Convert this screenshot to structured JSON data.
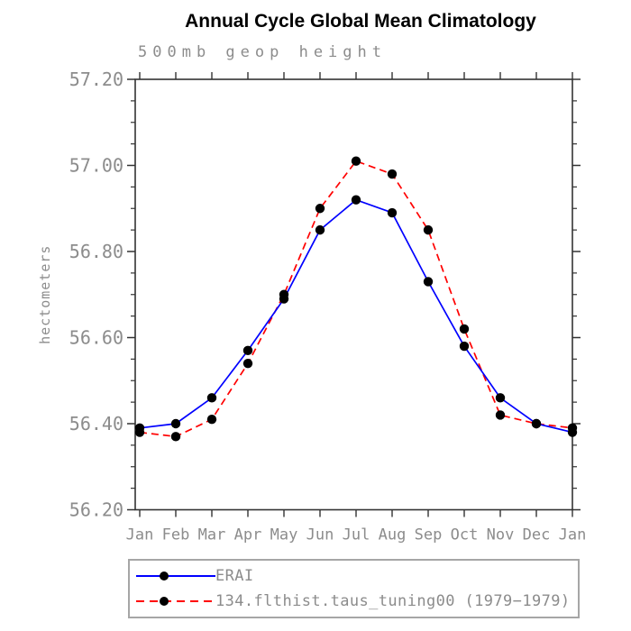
{
  "title": "Annual Cycle Global Mean Climatology",
  "subtitle": "500mb geop height",
  "chart_data": {
    "type": "line",
    "title": "Annual Cycle Global Mean Climatology",
    "subtitle": "500mb geop height",
    "xlabel": "",
    "ylabel": "hectometers",
    "categories": [
      "Jan",
      "Feb",
      "Mar",
      "Apr",
      "May",
      "Jun",
      "Jul",
      "Aug",
      "Sep",
      "Oct",
      "Nov",
      "Dec",
      "Jan"
    ],
    "ylim": [
      56.2,
      57.2
    ],
    "ytick_labels": [
      "56.20",
      "56.40",
      "56.60",
      "56.80",
      "57.00",
      "57.20"
    ],
    "ytick_major_step": 0.2,
    "ytick_minor_step": 0.05,
    "grid": false,
    "legend_position": "bottom",
    "series": [
      {
        "name": "ERAI",
        "color": "#0000ff",
        "line_style": "solid",
        "marker": "filled-circle",
        "marker_color": "#000000",
        "values": [
          56.39,
          56.4,
          56.46,
          56.57,
          56.69,
          56.85,
          56.92,
          56.89,
          56.73,
          56.58,
          56.46,
          56.4,
          56.38
        ]
      },
      {
        "name": "134.flthist.taus_tuning00 (1979−1979)",
        "color": "#ff0000",
        "line_style": "dashed",
        "marker": "filled-circle",
        "marker_color": "#000000",
        "values": [
          56.38,
          56.37,
          56.41,
          56.54,
          56.7,
          56.9,
          57.01,
          56.98,
          56.85,
          56.62,
          56.42,
          56.4,
          56.39
        ]
      }
    ]
  },
  "colors": {
    "series_blue": "#0000ff",
    "series_red": "#ff0000",
    "marker_black": "#000000",
    "axis": "#333333",
    "label_gray": "#8c8c8c",
    "legend_border": "#a6a6a6",
    "background": "#ffffff"
  }
}
